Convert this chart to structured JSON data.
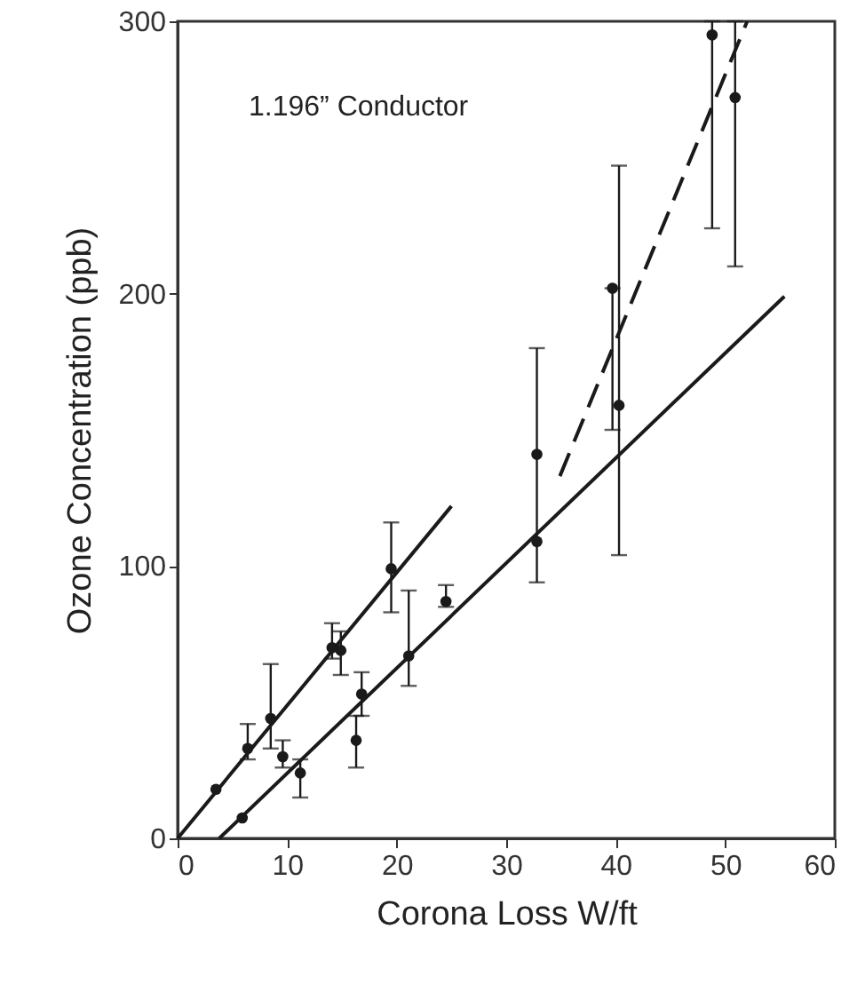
{
  "chart_data": {
    "type": "scatter",
    "xlabel": "Corona Loss W/ft",
    "ylabel": "Ozone Concentration (ppb)",
    "annotations": [
      "1.196” Conductor"
    ],
    "xlim": [
      0,
      60
    ],
    "xticks": [
      0,
      10,
      20,
      30,
      40,
      50,
      60
    ],
    "ylim": [
      0,
      300
    ],
    "yticks": [
      0,
      100,
      200,
      300
    ],
    "series": [
      {
        "marker": "circle",
        "color": "#1a1a1a",
        "x": [
          3.5,
          5.9,
          6.4,
          8.5,
          9.6,
          11.2,
          14.1,
          14.9,
          16.8,
          16.3,
          19.5,
          21.1,
          24.5,
          32.8,
          32.8,
          39.7,
          40.3,
          48.8,
          50.9
        ],
        "values": [
          18,
          7.5,
          33,
          44,
          30,
          24,
          70,
          69,
          53,
          36,
          99,
          67,
          87,
          109,
          141,
          202,
          159,
          295,
          272
        ],
        "errors": [
          null,
          null,
          [
            29,
            42
          ],
          [
            33,
            64
          ],
          [
            26,
            36
          ],
          [
            15,
            29
          ],
          [
            66,
            79
          ],
          [
            60,
            76
          ],
          [
            45,
            61
          ],
          [
            26,
            45
          ],
          [
            83,
            116
          ],
          [
            56,
            91
          ],
          [
            85,
            93
          ],
          [
            94,
            180
          ],
          null,
          [
            150,
            202
          ],
          [
            104,
            247
          ],
          [
            224,
            300
          ],
          [
            210,
            300
          ]
        ]
      },
      {
        "type": "line",
        "marker": "none",
        "color": "#1a1a1a",
        "line_style": "solid",
        "x": [
          0,
          25
        ],
        "values": [
          0,
          122
        ]
      },
      {
        "type": "line",
        "marker": "none",
        "color": "#1a1a1a",
        "line_style": "solid",
        "x": [
          3.8,
          55.4
        ],
        "values": [
          0,
          199
        ]
      },
      {
        "type": "line",
        "marker": "none",
        "color": "#1a1a1a",
        "line_style": "dashed",
        "x": [
          34.9,
          52
        ],
        "values": [
          133,
          300
        ]
      }
    ]
  }
}
